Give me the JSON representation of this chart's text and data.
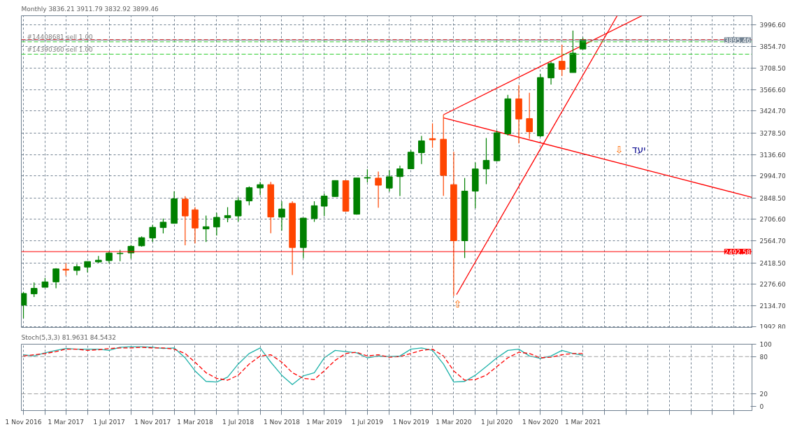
{
  "chart_data": [
    {
      "type": "candlestick",
      "title": "Monthly  3836.21 3911.79 3832.92 3899.46",
      "x": [
        "2016-11",
        "2016-12",
        "2017-01",
        "2017-02",
        "2017-03",
        "2017-04",
        "2017-05",
        "2017-06",
        "2017-07",
        "2017-08",
        "2017-09",
        "2017-10",
        "2017-11",
        "2017-12",
        "2018-01",
        "2018-02",
        "2018-03",
        "2018-04",
        "2018-05",
        "2018-06",
        "2018-07",
        "2018-08",
        "2018-09",
        "2018-10",
        "2018-11",
        "2018-12",
        "2019-01",
        "2019-02",
        "2019-03",
        "2019-04",
        "2019-05",
        "2019-06",
        "2019-07",
        "2019-08",
        "2019-09",
        "2019-10",
        "2019-11",
        "2019-12",
        "2020-01",
        "2020-02",
        "2020-03",
        "2020-04",
        "2020-05",
        "2020-06",
        "2020-07",
        "2020-08",
        "2020-09",
        "2020-10",
        "2020-11",
        "2020-12",
        "2021-01",
        "2021-02",
        "2021-03"
      ],
      "ohlc": [
        [
          2138,
          2225,
          2050,
          2215
        ],
        [
          2213,
          2288,
          2192,
          2249
        ],
        [
          2256,
          2318,
          2256,
          2292
        ],
        [
          2292,
          2383,
          2249,
          2378
        ],
        [
          2376,
          2415,
          2334,
          2370
        ],
        [
          2368,
          2409,
          2336,
          2393
        ],
        [
          2390,
          2427,
          2355,
          2427
        ],
        [
          2424,
          2464,
          2419,
          2436
        ],
        [
          2433,
          2493,
          2414,
          2483
        ],
        [
          2479,
          2505,
          2429,
          2482
        ],
        [
          2484,
          2537,
          2446,
          2528
        ],
        [
          2531,
          2594,
          2525,
          2585
        ],
        [
          2583,
          2670,
          2558,
          2654
        ],
        [
          2652,
          2712,
          2613,
          2688
        ],
        [
          2680,
          2892,
          2680,
          2843
        ],
        [
          2841,
          2860,
          2535,
          2729
        ],
        [
          2770,
          2787,
          2547,
          2649
        ],
        [
          2643,
          2731,
          2556,
          2658
        ],
        [
          2656,
          2750,
          2600,
          2720
        ],
        [
          2717,
          2787,
          2687,
          2732
        ],
        [
          2729,
          2853,
          2692,
          2831
        ],
        [
          2829,
          2925,
          2800,
          2917
        ],
        [
          2915,
          2955,
          2867,
          2937
        ],
        [
          2937,
          2955,
          2615,
          2722
        ],
        [
          2721,
          2827,
          2632,
          2775
        ],
        [
          2813,
          2826,
          2338,
          2520
        ],
        [
          2520,
          2715,
          2449,
          2715
        ],
        [
          2712,
          2827,
          2690,
          2797
        ],
        [
          2794,
          2877,
          2729,
          2861
        ],
        [
          2858,
          2964,
          2858,
          2964
        ],
        [
          2963,
          2965,
          2759,
          2761
        ],
        [
          2741,
          2981,
          2737,
          2981
        ],
        [
          2980,
          3038,
          2952,
          2984
        ],
        [
          2980,
          3023,
          2784,
          2933
        ],
        [
          2914,
          3033,
          2891,
          2989
        ],
        [
          2990,
          3063,
          2861,
          3042
        ],
        [
          3042,
          3166,
          3042,
          3152
        ],
        [
          3149,
          3260,
          3073,
          3227
        ],
        [
          3242,
          3343,
          3181,
          3234
        ],
        [
          3238,
          3400,
          2863,
          2998
        ],
        [
          2937,
          3155,
          2199,
          2565
        ],
        [
          2565,
          2981,
          2450,
          2894
        ],
        [
          2894,
          3084,
          2780,
          3041
        ],
        [
          3041,
          3246,
          2940,
          3098
        ],
        [
          3095,
          3295,
          3091,
          3281
        ],
        [
          3274,
          3532,
          3262,
          3506
        ],
        [
          3506,
          3597,
          3210,
          3372
        ],
        [
          3375,
          3546,
          3241,
          3288
        ],
        [
          3260,
          3671,
          3253,
          3647
        ],
        [
          3645,
          3751,
          3601,
          3740
        ],
        [
          3755,
          3865,
          3657,
          3701
        ],
        [
          3680,
          3959,
          3680,
          3809
        ],
        [
          3836.21,
          3911.79,
          3832.92,
          3899.46
        ]
      ],
      "colors": [
        "#008000",
        "#008000",
        "#008000",
        "#008000",
        "#ff4500",
        "#008000",
        "#008000",
        "#008000",
        "#008000",
        "#008000",
        "#008000",
        "#008000",
        "#008000",
        "#008000",
        "#008000",
        "#ff4500",
        "#ff4500",
        "#008000",
        "#008000",
        "#008000",
        "#008000",
        "#008000",
        "#008000",
        "#ff4500",
        "#008000",
        "#ff4500",
        "#008000",
        "#008000",
        "#008000",
        "#008000",
        "#ff4500",
        "#008000",
        "#008000",
        "#ff4500",
        "#008000",
        "#008000",
        "#008000",
        "#008000",
        "#ff4500",
        "#ff4500",
        "#ff4500",
        "#008000",
        "#008000",
        "#008000",
        "#008000",
        "#008000",
        "#ff4500",
        "#ff4500",
        "#008000",
        "#008000",
        "#ff4500",
        "#008000",
        "#008000"
      ],
      "series": [
        {
          "type": "line",
          "color": "#ff0000",
          "x": [
            "2020-02-01",
            "2021-08-15"
          ],
          "values": [
            3400,
            4057
          ]
        },
        {
          "type": "line",
          "color": "#ff0000",
          "x": [
            "2020-02-01",
            "2022-06-22"
          ],
          "values": [
            3380,
            2853
          ]
        },
        {
          "type": "line",
          "color": "#ff0000",
          "x": [
            "2020-03-09",
            "2021-06-06"
          ],
          "values": [
            2208,
            4057
          ]
        }
      ],
      "ref_lines": [
        {
          "axis": "y",
          "value": 3898,
          "color": "#ff0000",
          "line_style": "dashed"
        },
        {
          "axis": "y",
          "value": 3884,
          "label": "#14408681 sell 1.00",
          "color": "#32cd32",
          "line_style": "dashed"
        },
        {
          "axis": "y",
          "value": 3802,
          "label": "#14390360 sell 1.00",
          "color": "#32cd32",
          "line_style": "dashed"
        },
        {
          "axis": "y",
          "value": 3895.46,
          "label": "3895.46",
          "color": "#708090",
          "line_style": "solid"
        },
        {
          "axis": "y",
          "value": 2492.58,
          "label": "2492.58",
          "color": "#ff0000",
          "line_style": "solid"
        }
      ],
      "annotations": [
        "⇧",
        "⇩",
        "יעד"
      ],
      "xlim": [
        "2016-10-26",
        "2022-06-22"
      ],
      "ylim": [
        1990,
        4057
      ],
      "yticks": [
        {
          "value": 1992.8,
          "label": "1992.80"
        },
        {
          "value": 2134.7,
          "label": "2134.70"
        },
        {
          "value": 2276.6,
          "label": "2276.60"
        },
        {
          "value": 2418.5,
          "label": "2418.50"
        },
        {
          "value": 2564.7,
          "label": "2564.70"
        },
        {
          "value": 2706.6,
          "label": "2706.60"
        },
        {
          "value": 2848.5,
          "label": "2848.50"
        },
        {
          "value": 2994.7,
          "label": "2994.70"
        },
        {
          "value": 3136.6,
          "label": "3136.60"
        },
        {
          "value": 3278.5,
          "label": "3278.50"
        },
        {
          "value": 3424.7,
          "label": "3424.70"
        },
        {
          "value": 3566.6,
          "label": "3566.60"
        },
        {
          "value": 3708.5,
          "label": "3708.50"
        },
        {
          "value": 3854.7,
          "label": "3854.70"
        },
        {
          "value": 3996.6,
          "label": "3996.60"
        }
      ],
      "xticks": [
        {
          "value": "2016-11-01",
          "label": null
        },
        {
          "value": "2017-01-01",
          "label": null
        },
        {
          "value": "2017-03-01",
          "label": null
        },
        {
          "value": "2017-05-01",
          "label": null
        },
        {
          "value": "2017-07-01",
          "label": null
        },
        {
          "value": "2017-09-01",
          "label": null
        },
        {
          "value": "2017-11-01",
          "label": null
        },
        {
          "value": "2018-01-01",
          "label": null
        },
        {
          "value": "2018-03-01",
          "label": null
        },
        {
          "value": "2018-05-01",
          "label": null
        },
        {
          "value": "2018-07-01",
          "label": null
        },
        {
          "value": "2018-09-01",
          "label": null
        },
        {
          "value": "2018-11-01",
          "label": null
        },
        {
          "value": "2019-01-01",
          "label": null
        },
        {
          "value": "2019-03-01",
          "label": null
        },
        {
          "value": "2019-05-01",
          "label": null
        },
        {
          "value": "2019-07-01",
          "label": null
        },
        {
          "value": "2019-09-01",
          "label": null
        },
        {
          "value": "2019-11-01",
          "label": null
        },
        {
          "value": "2020-01-01",
          "label": null
        },
        {
          "value": "2020-03-01",
          "label": null
        },
        {
          "value": "2020-05-01",
          "label": null
        },
        {
          "value": "2020-07-01",
          "label": null
        },
        {
          "value": "2020-09-01",
          "label": null
        },
        {
          "value": "2020-11-01",
          "label": null
        },
        {
          "value": "2021-01-01",
          "label": null
        },
        {
          "value": "2021-03-01",
          "label": null
        },
        {
          "value": "2021-05-01",
          "label": null
        },
        {
          "value": "2021-07-01",
          "label": null
        },
        {
          "value": "2021-09-01",
          "label": null
        },
        {
          "value": "2021-11-01",
          "label": null
        },
        {
          "value": "2022-01-01",
          "label": null
        },
        {
          "value": "2022-03-01",
          "label": null
        },
        {
          "value": "2022-05-01",
          "label": null
        }
      ],
      "tick_labels": "y",
      "grid": true
    },
    {
      "type": "line",
      "title": "Stoch(5,3,3) 81.9631 84.5432",
      "x": [
        "2016-11",
        "2016-12",
        "2017-01",
        "2017-02",
        "2017-03",
        "2017-04",
        "2017-05",
        "2017-06",
        "2017-07",
        "2017-08",
        "2017-09",
        "2017-10",
        "2017-11",
        "2017-12",
        "2018-01",
        "2018-02",
        "2018-03",
        "2018-04",
        "2018-05",
        "2018-06",
        "2018-07",
        "2018-08",
        "2018-09",
        "2018-10",
        "2018-11",
        "2018-12",
        "2019-01",
        "2019-02",
        "2019-03",
        "2019-04",
        "2019-05",
        "2019-06",
        "2019-07",
        "2019-08",
        "2019-09",
        "2019-10",
        "2019-11",
        "2019-12",
        "2020-01",
        "2020-02",
        "2020-03",
        "2020-04",
        "2020-05",
        "2020-06",
        "2020-07",
        "2020-08",
        "2020-09",
        "2020-10",
        "2020-11",
        "2020-12",
        "2021-01",
        "2021-02",
        "2021-03"
      ],
      "series": [
        {
          "color": "#20b2aa",
          "line_style": "solid",
          "values": [
            83,
            81,
            86,
            90,
            93,
            92,
            92,
            92,
            90,
            95,
            96,
            96,
            95,
            93,
            94,
            78,
            57,
            40,
            39,
            47,
            68,
            85,
            94,
            71,
            50,
            35,
            49,
            54,
            78,
            90,
            88,
            86,
            78,
            81,
            80,
            81,
            92,
            94,
            90,
            68,
            39,
            40,
            50,
            64,
            78,
            90,
            92,
            81,
            77,
            81,
            90,
            85,
            82
          ]
        },
        {
          "color": "#ff0000",
          "line_style": "dashed",
          "values": [
            81,
            83,
            85,
            88,
            92,
            92,
            90,
            91,
            93,
            94,
            94,
            95,
            94,
            94,
            92,
            85,
            71,
            54,
            45,
            42,
            50,
            68,
            81,
            83,
            71,
            54,
            45,
            43,
            57,
            74,
            85,
            87,
            81,
            83,
            79,
            80,
            85,
            90,
            92,
            81,
            57,
            42,
            43,
            50,
            64,
            78,
            87,
            85,
            78,
            79,
            83,
            85,
            85
          ]
        }
      ],
      "ref_lines": [
        {
          "axis": "y",
          "value": 80,
          "color": "#a0a0a0",
          "line_style": "dashed"
        },
        {
          "axis": "y",
          "value": 20,
          "color": "#a0a0a0",
          "line_style": "dashed"
        }
      ],
      "xlim": [
        "2016-10-26",
        "2022-06-22"
      ],
      "ylim": [
        -7,
        100
      ],
      "yticks": [
        0,
        20,
        80,
        100
      ],
      "xticks": [
        {
          "value": "2016-11-01",
          "label": "1 Nov 2016"
        },
        {
          "value": "2017-01-01",
          "label": null
        },
        {
          "value": "2017-03-01",
          "label": "1 Mar 2017"
        },
        {
          "value": "2017-05-01",
          "label": null
        },
        {
          "value": "2017-07-01",
          "label": "1 Jul 2017"
        },
        {
          "value": "2017-09-01",
          "label": null
        },
        {
          "value": "2017-11-01",
          "label": "1 Nov 2017"
        },
        {
          "value": "2018-01-01",
          "label": null
        },
        {
          "value": "2018-03-01",
          "label": "1 Mar 2018"
        },
        {
          "value": "2018-05-01",
          "label": null
        },
        {
          "value": "2018-07-01",
          "label": "1 Jul 2018"
        },
        {
          "value": "2018-09-01",
          "label": null
        },
        {
          "value": "2018-11-01",
          "label": "1 Nov 2018"
        },
        {
          "value": "2019-01-01",
          "label": null
        },
        {
          "value": "2019-03-01",
          "label": "1 Mar 2019"
        },
        {
          "value": "2019-05-01",
          "label": null
        },
        {
          "value": "2019-07-01",
          "label": "1 Jul 2019"
        },
        {
          "value": "2019-09-01",
          "label": null
        },
        {
          "value": "2019-11-01",
          "label": "1 Nov 2019"
        },
        {
          "value": "2020-01-01",
          "label": null
        },
        {
          "value": "2020-03-01",
          "label": "1 Mar 2020"
        },
        {
          "value": "2020-05-01",
          "label": null
        },
        {
          "value": "2020-07-01",
          "label": "1 Jul 2020"
        },
        {
          "value": "2020-09-01",
          "label": null
        },
        {
          "value": "2020-11-01",
          "label": "1 Nov 2020"
        },
        {
          "value": "2021-01-01",
          "label": null
        },
        {
          "value": "2021-03-01",
          "label": "1 Mar 2021"
        },
        {
          "value": "2021-05-01",
          "label": null
        },
        {
          "value": "2021-07-01",
          "label": null
        },
        {
          "value": "2021-09-01",
          "label": null
        },
        {
          "value": "2021-11-01",
          "label": null
        },
        {
          "value": "2022-01-01",
          "label": null
        },
        {
          "value": "2022-03-01",
          "label": null
        },
        {
          "value": "2022-05-01",
          "label": null
        }
      ],
      "grid": "x"
    }
  ]
}
